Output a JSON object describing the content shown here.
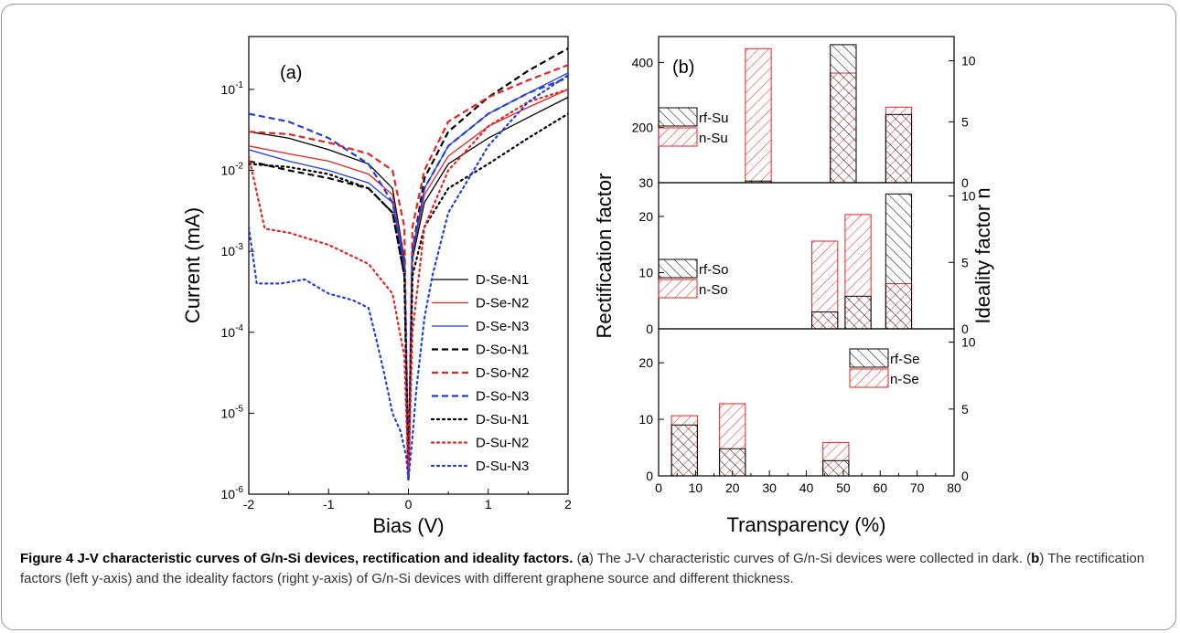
{
  "chart_data": [
    {
      "type": "line",
      "panel_label": "(a)",
      "xlabel": "Bias (V)",
      "ylabel": "Current (mA)",
      "xlim": [
        -2,
        2
      ],
      "ylim": [
        1e-06,
        0.45
      ],
      "y_scale": "log",
      "x_ticks": [
        "-2",
        "-1",
        "0",
        "1",
        "2"
      ],
      "y_ticks": [
        "10-6",
        "10-5",
        "10-4",
        "10-3",
        "10-2",
        "10-1"
      ],
      "legend_position": "lower-right",
      "series": [
        {
          "name": "D-Se-N1",
          "color": "#000000",
          "dash": "solid",
          "x": [
            -2,
            -1.5,
            -1,
            -0.5,
            -0.2,
            -0.05,
            0,
            0.05,
            0.2,
            0.5,
            1,
            1.5,
            2
          ],
          "y": [
            0.03,
            0.025,
            0.018,
            0.012,
            0.006,
            0.0008,
            1.5e-06,
            0.0008,
            0.004,
            0.012,
            0.025,
            0.045,
            0.08
          ]
        },
        {
          "name": "D-Se-N2",
          "color": "#e8231f",
          "dash": "solid",
          "x": [
            -2,
            -1.5,
            -1,
            -0.5,
            -0.2,
            -0.05,
            0,
            0.05,
            0.2,
            0.5,
            1,
            1.5,
            2
          ],
          "y": [
            0.02,
            0.016,
            0.013,
            0.009,
            0.005,
            0.0007,
            1.5e-06,
            0.0009,
            0.005,
            0.015,
            0.035,
            0.06,
            0.1
          ]
        },
        {
          "name": "D-Se-N3",
          "color": "#1f3fe0",
          "dash": "solid",
          "x": [
            -2,
            -1.5,
            -1,
            -0.5,
            -0.2,
            -0.05,
            0,
            0.05,
            0.2,
            0.5,
            1,
            1.5,
            2
          ],
          "y": [
            0.018,
            0.013,
            0.01,
            0.007,
            0.004,
            0.0006,
            1.5e-06,
            0.001,
            0.006,
            0.02,
            0.05,
            0.09,
            0.16
          ]
        },
        {
          "name": "D-So-N1",
          "color": "#000000",
          "dash": "dashed",
          "x": [
            -2,
            -1.5,
            -1,
            -0.5,
            -0.2,
            -0.05,
            0,
            0.05,
            0.2,
            0.5,
            1,
            1.5,
            2
          ],
          "y": [
            0.013,
            0.01,
            0.008,
            0.006,
            0.003,
            0.0005,
            1.5e-06,
            0.001,
            0.008,
            0.03,
            0.08,
            0.17,
            0.32
          ]
        },
        {
          "name": "D-So-N2",
          "color": "#e8231f",
          "dash": "dashed",
          "x": [
            -2,
            -1.5,
            -1,
            -0.5,
            -0.2,
            -0.05,
            0,
            0.05,
            0.2,
            0.5,
            1,
            1.5,
            2
          ],
          "y": [
            0.03,
            0.028,
            0.022,
            0.016,
            0.01,
            0.002,
            1.5e-06,
            0.002,
            0.01,
            0.04,
            0.08,
            0.13,
            0.2
          ]
        },
        {
          "name": "D-So-N3",
          "color": "#1f3fe0",
          "dash": "dashed",
          "x": [
            -2,
            -1.5,
            -1,
            -0.5,
            -0.2,
            -0.05,
            0,
            0.05,
            0.2,
            0.5,
            1,
            1.5,
            2
          ],
          "y": [
            0.05,
            0.04,
            0.025,
            0.012,
            0.004,
            0.0008,
            1.5e-06,
            0.001,
            0.006,
            0.02,
            0.05,
            0.09,
            0.14
          ]
        },
        {
          "name": "D-Su-N1",
          "color": "#000000",
          "dash": "dotted",
          "x": [
            -2,
            -1.5,
            -1,
            -0.5,
            -0.2,
            -0.05,
            0,
            0.05,
            0.2,
            0.5,
            1,
            1.5,
            2
          ],
          "y": [
            0.012,
            0.011,
            0.009,
            0.006,
            0.003,
            0.0005,
            1.5e-06,
            0.0005,
            0.002,
            0.006,
            0.012,
            0.025,
            0.05
          ]
        },
        {
          "name": "D-Su-N2",
          "color": "#e8231f",
          "dash": "dotted",
          "x": [
            -2,
            -1.8,
            -1.5,
            -1,
            -0.5,
            -0.2,
            -0.05,
            0,
            0.05,
            0.2,
            0.5,
            1,
            1.5,
            2
          ],
          "y": [
            0.015,
            0.0019,
            0.0017,
            0.0012,
            0.0007,
            0.0003,
            5e-05,
            1.5e-06,
            0.0001,
            0.002,
            0.01,
            0.035,
            0.07,
            0.1
          ]
        },
        {
          "name": "D-Su-N3",
          "color": "#1f3fe0",
          "dash": "dotted",
          "x": [
            -2,
            -1.9,
            -1.6,
            -1.3,
            -1.0,
            -0.7,
            -0.5,
            -0.4,
            -0.3,
            -0.2,
            -0.1,
            -0.03,
            0,
            0.05,
            0.1,
            0.2,
            0.3,
            0.5,
            1,
            1.5,
            2
          ],
          "y": [
            0.002,
            0.0004,
            0.0004,
            0.00045,
            0.0003,
            0.00025,
            0.0002,
            8e-05,
            3e-05,
            1e-05,
            6e-06,
            3e-06,
            1.5e-06,
            5e-06,
            2e-05,
            0.00015,
            0.0005,
            0.003,
            0.02,
            0.07,
            0.15
          ]
        }
      ]
    },
    {
      "type": "bar",
      "panel_label": "(b)",
      "xlabel": "Transparency (%)",
      "ylabel": "Rectification factor",
      "ylabel_right": "Ideality factor n",
      "xlim": [
        0,
        80
      ],
      "x_ticks": [
        "0",
        "10",
        "20",
        "30",
        "40",
        "50",
        "60",
        "70",
        "80"
      ],
      "subplots": [
        {
          "position": "top",
          "ylim_left": [
            30,
            480
          ],
          "left_ticks": [
            "30",
            "200",
            "400"
          ],
          "ylim_right": [
            0,
            12
          ],
          "right_ticks": [
            "0",
            "5",
            "10"
          ],
          "series": [
            {
              "name": "rf-Su",
              "axis": "left",
              "color": "#000000",
              "x": [
                27,
                50,
                65
              ],
              "values": [
                35,
                455,
                240
              ]
            },
            {
              "name": "n-Su",
              "axis": "right",
              "color": "#e8231f",
              "x": [
                27,
                50,
                65
              ],
              "values": [
                11,
                9,
                6.2
              ]
            }
          ]
        },
        {
          "position": "middle",
          "ylim_left": [
            0,
            26
          ],
          "left_ticks": [
            "0",
            "10",
            "20"
          ],
          "ylim_right": [
            0,
            11
          ],
          "right_ticks": [
            "0",
            "5",
            "10"
          ],
          "series": [
            {
              "name": "rf-So",
              "axis": "left",
              "color": "#000000",
              "x": [
                45,
                54,
                65
              ],
              "values": [
                3,
                5.8,
                24
              ]
            },
            {
              "name": "n-So",
              "axis": "right",
              "color": "#e8231f",
              "x": [
                45,
                54,
                65
              ],
              "values": [
                6.6,
                8.6,
                3.4
              ]
            }
          ]
        },
        {
          "position": "bottom",
          "ylim_left": [
            0,
            26
          ],
          "left_ticks": [
            "0",
            "10",
            "20"
          ],
          "ylim_right": [
            0,
            11
          ],
          "right_ticks": [
            "0",
            "5",
            "10"
          ],
          "series": [
            {
              "name": "rf-Se",
              "axis": "left",
              "color": "#000000",
              "x": [
                7,
                20,
                48
              ],
              "values": [
                9,
                4.8,
                2.7
              ]
            },
            {
              "name": "n-Se",
              "axis": "right",
              "color": "#e8231f",
              "x": [
                7,
                20,
                48
              ],
              "values": [
                4.5,
                5.4,
                2.5
              ]
            }
          ]
        }
      ]
    }
  ],
  "caption": {
    "title": "Figure 4 J-V characteristic curves of G/n-Si devices, rectification and ideality factors.",
    "part_a_open": "(",
    "part_a_letter": "a",
    "part_a_text": ") The J-V characteristic curves of G/n-Si devices were collected in dark. (",
    "part_b_letter": "b",
    "part_b_text": ") The rectification factors (left y-axis) and the ideality factors (right y-axis) of G/n-Si devices with different graphene source and different thickness."
  }
}
